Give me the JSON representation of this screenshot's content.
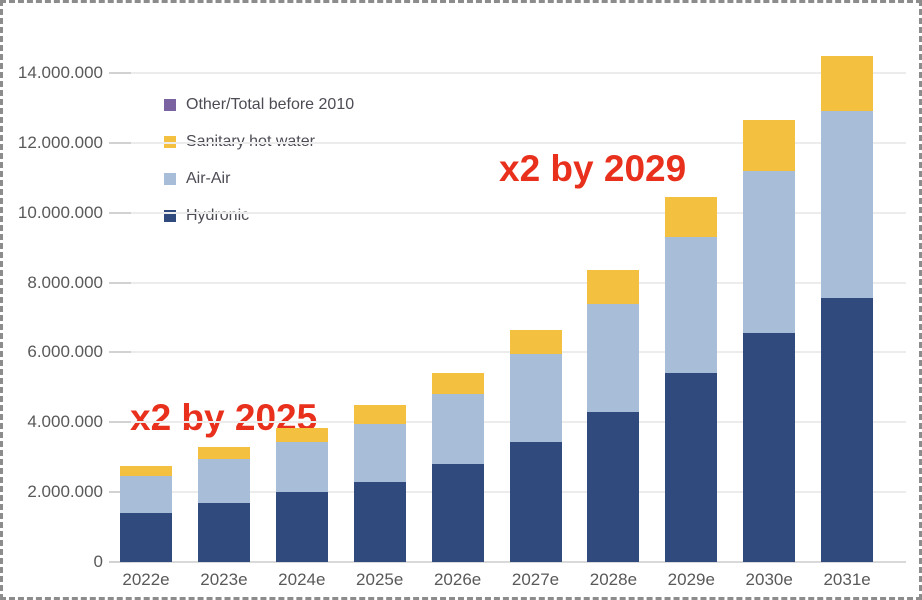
{
  "chart_data": {
    "type": "bar",
    "stacked": true,
    "title": "",
    "xlabel": "",
    "ylabel": "",
    "grid": true,
    "legend_position": "top-left-inside",
    "categories": [
      "2022e",
      "2023e",
      "2024e",
      "2025e",
      "2026e",
      "2027e",
      "2028e",
      "2029e",
      "2030e",
      "2031e"
    ],
    "series": [
      {
        "name": "Hydronic",
        "color": "#304a7d",
        "values": [
          1400000,
          1700000,
          2000000,
          2300000,
          2800000,
          3450000,
          4300000,
          5400000,
          6550000,
          7550000
        ]
      },
      {
        "name": "Air-Air",
        "color": "#a8bdd8",
        "values": [
          1050000,
          1250000,
          1450000,
          1650000,
          2000000,
          2500000,
          3100000,
          3900000,
          4650000,
          5350000
        ]
      },
      {
        "name": "Sanitary hot water",
        "color": "#f3c13f",
        "values": [
          300000,
          350000,
          400000,
          550000,
          600000,
          700000,
          950000,
          1150000,
          1450000,
          1600000
        ]
      },
      {
        "name": "Other/Total before 2010",
        "color": "#7b63a2",
        "values": [
          0,
          0,
          0,
          0,
          0,
          0,
          0,
          0,
          0,
          0
        ]
      }
    ],
    "totals": [
      2750000,
      3300000,
      3850000,
      4500000,
      5400000,
      6650000,
      8350000,
      10450000,
      12650000,
      14500000
    ],
    "y_axis": {
      "min": 0,
      "max": 14000000,
      "step": 2000000,
      "tick_labels": [
        "0",
        "2.000.000",
        "4.000.000",
        "6.000.000",
        "8.000.000",
        "10.000.000",
        "12.000.000",
        "14.000.000"
      ]
    },
    "legend": [
      {
        "label": "Other/Total before 2010",
        "color": "#7b63a2"
      },
      {
        "label": "Sanitary hot water",
        "color": "#f3c13f"
      },
      {
        "label": "Air-Air",
        "color": "#a8bdd8"
      },
      {
        "label": "Hydronic",
        "color": "#304a7d"
      }
    ],
    "annotations": [
      {
        "text": "x2 by 2025",
        "color": "#e8301d"
      },
      {
        "text": "x2 by 2029",
        "color": "#e8301d"
      }
    ]
  }
}
